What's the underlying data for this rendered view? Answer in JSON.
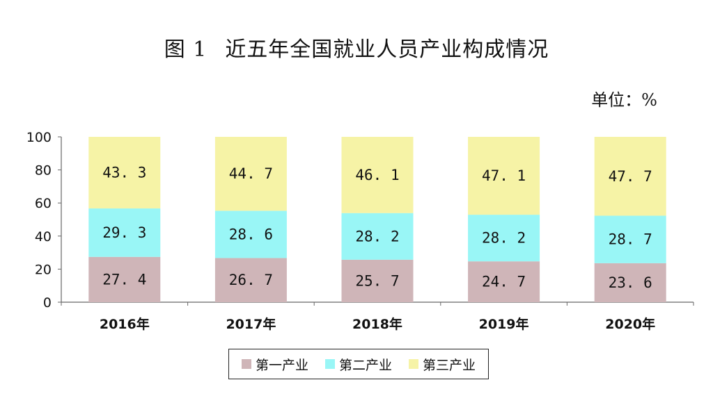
{
  "title_prefix": "图 1",
  "title_text": "近五年全国就业人员产业构成情况",
  "unit_label": "单位：%",
  "colors": {
    "第一产业": "#cfb5b8",
    "第二产业": "#99f6f6",
    "第三产业": "#f6f3a6"
  },
  "chart_data": {
    "type": "bar",
    "stacked": true,
    "title": "近五年全国就业人员产业构成情况",
    "ylim": [
      0,
      100
    ],
    "yticks": [
      0,
      20,
      40,
      60,
      80,
      100
    ],
    "categories": [
      "2016年",
      "2017年",
      "2018年",
      "2019年",
      "2020年"
    ],
    "series": [
      {
        "name": "第一产业",
        "values": [
          27.4,
          26.7,
          25.7,
          24.7,
          23.6
        ]
      },
      {
        "name": "第二产业",
        "values": [
          29.3,
          28.6,
          28.2,
          28.2,
          28.7
        ]
      },
      {
        "name": "第三产业",
        "values": [
          43.3,
          44.7,
          46.1,
          47.1,
          47.7
        ]
      }
    ],
    "legend_position": "bottom",
    "grid": false
  }
}
